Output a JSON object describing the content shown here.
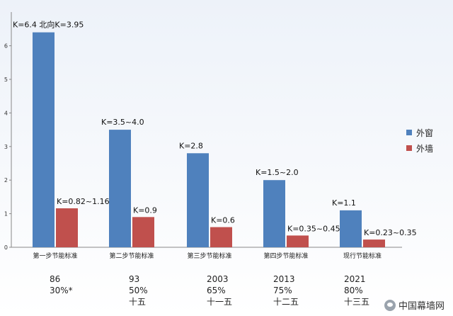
{
  "chart_data": {
    "type": "bar",
    "categories": [
      "第一步节能标准",
      "第二步节能标准",
      "第三步节能标准",
      "第四步节能标准",
      "现行节能标准"
    ],
    "series": [
      {
        "name": "外窗",
        "color": "#4f81bd",
        "values": [
          6.4,
          3.5,
          2.8,
          2.0,
          1.1
        ]
      },
      {
        "name": "外墙",
        "color": "#c0504d",
        "values": [
          1.16,
          0.9,
          0.6,
          0.35,
          0.23
        ]
      }
    ],
    "ylim": [
      0,
      6.5
    ],
    "yticks": [
      "0",
      "1",
      "2",
      "3",
      "4",
      "5",
      "6"
    ],
    "data_labels": {
      "windows": [
        "K=6.4  北向K=3.95",
        "K=3.5~4.0",
        "K=2.8",
        "K=1.5~2.0",
        "K=1.1"
      ],
      "walls": [
        "K=0.82~1.16",
        "K=0.9",
        "K=0.6",
        "K=0.35~0.45",
        "K=0.23~0.35"
      ]
    },
    "grid": false,
    "legend_position": "right"
  },
  "notes": [
    {
      "line1": "86",
      "line2": "30%*",
      "line3": ""
    },
    {
      "line1": "93",
      "line2": "50%",
      "line3": "十五"
    },
    {
      "line1": "2003",
      "line2": "65%",
      "line3": "十一五"
    },
    {
      "line1": "2013",
      "line2": "75%",
      "line3": "十二五"
    },
    {
      "line1": "2021",
      "line2": "80%",
      "line3": "十三五"
    }
  ],
  "watermark": {
    "text": "中国幕墙网",
    "icon": "wechat-icon"
  }
}
